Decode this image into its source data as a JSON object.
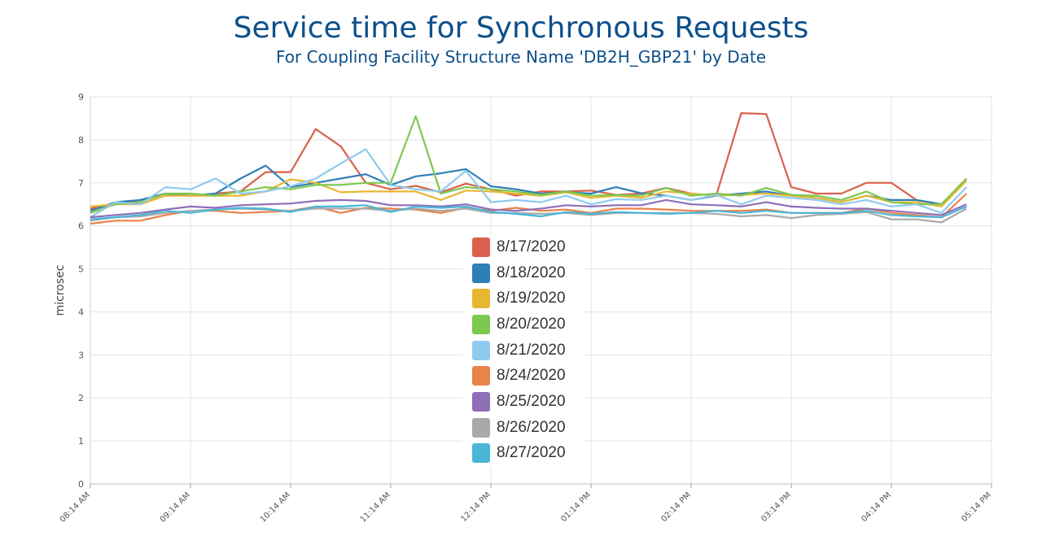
{
  "title": "Service time for Synchronous Requests",
  "subtitle": "For Coupling Facility Structure Name 'DB2H_GBP21' by Date",
  "chart_data": {
    "type": "line",
    "ylabel": "microsec",
    "xlabel": "",
    "ylim": [
      0,
      9
    ],
    "yticks": [
      "0",
      "1",
      "2",
      "3",
      "4",
      "5",
      "6",
      "7",
      "8",
      "9"
    ],
    "x_tick_labels": [
      "08:14 AM",
      "09:14 AM",
      "10:14 AM",
      "11:14 AM",
      "12:14 PM",
      "01:14 PM",
      "02:14 PM",
      "03:14 PM",
      "04:14 PM",
      "05:14 PM"
    ],
    "grid": true,
    "x": [
      "08:14 AM",
      "08:29 AM",
      "08:44 AM",
      "08:59 AM",
      "09:14 AM",
      "09:29 AM",
      "09:44 AM",
      "09:59 AM",
      "10:14 AM",
      "10:29 AM",
      "10:44 AM",
      "10:59 AM",
      "11:14 AM",
      "11:29 AM",
      "11:44 AM",
      "11:59 AM",
      "12:14 PM",
      "12:29 PM",
      "12:44 PM",
      "12:59 PM",
      "01:14 PM",
      "01:29 PM",
      "01:44 PM",
      "01:59 PM",
      "02:14 PM",
      "02:29 PM",
      "02:44 PM",
      "02:59 PM",
      "03:14 PM",
      "03:29 PM",
      "03:44 PM",
      "03:59 PM",
      "04:14 PM",
      "04:29 PM",
      "04:44 PM",
      "04:59 PM"
    ],
    "series": [
      {
        "name": "8/17/2020",
        "color": "#d9614c",
        "values": [
          6.4,
          6.5,
          6.6,
          6.75,
          6.7,
          6.75,
          6.8,
          7.25,
          7.25,
          8.25,
          7.85,
          7.0,
          6.85,
          6.93,
          6.78,
          6.98,
          6.85,
          6.7,
          6.8,
          6.8,
          6.82,
          6.72,
          6.75,
          6.88,
          6.75,
          6.7,
          8.62,
          8.6,
          6.9,
          6.75,
          6.75,
          7.0,
          7.0,
          6.6,
          6.5,
          7.1
        ]
      },
      {
        "name": "8/18/2020",
        "color": "#2f7fb7",
        "values": [
          6.35,
          6.55,
          6.6,
          6.75,
          6.7,
          6.75,
          7.1,
          7.4,
          6.9,
          7.0,
          7.1,
          7.2,
          6.95,
          7.15,
          7.22,
          7.32,
          6.92,
          6.85,
          6.75,
          6.78,
          6.75,
          6.9,
          6.76,
          6.7,
          6.6,
          6.7,
          6.75,
          6.8,
          6.7,
          6.65,
          6.55,
          6.7,
          6.6,
          6.6,
          6.5,
          7.05
        ]
      },
      {
        "name": "8/19/2020",
        "color": "#e8b731",
        "values": [
          6.45,
          6.5,
          6.5,
          6.7,
          6.7,
          6.7,
          6.7,
          6.8,
          7.08,
          7.0,
          6.78,
          6.8,
          6.8,
          6.8,
          6.6,
          6.82,
          6.8,
          6.75,
          6.7,
          6.78,
          6.65,
          6.7,
          6.65,
          6.8,
          6.75,
          6.7,
          6.72,
          6.75,
          6.7,
          6.65,
          6.55,
          6.7,
          6.55,
          6.55,
          6.45,
          7.05
        ]
      },
      {
        "name": "8/20/2020",
        "color": "#7cc950",
        "values": [
          6.3,
          6.5,
          6.55,
          6.75,
          6.75,
          6.7,
          6.8,
          6.9,
          6.85,
          6.95,
          6.95,
          7.0,
          7.0,
          8.55,
          6.75,
          6.9,
          6.85,
          6.8,
          6.72,
          6.8,
          6.7,
          6.72,
          6.7,
          6.88,
          6.7,
          6.75,
          6.7,
          6.88,
          6.72,
          6.7,
          6.6,
          6.8,
          6.55,
          6.5,
          6.5,
          7.1
        ]
      },
      {
        "name": "8/21/2020",
        "color": "#8fcbee",
        "values": [
          6.2,
          6.55,
          6.5,
          6.9,
          6.85,
          7.1,
          6.75,
          6.8,
          6.92,
          7.1,
          7.45,
          7.78,
          6.95,
          6.85,
          6.8,
          7.28,
          6.55,
          6.6,
          6.55,
          6.7,
          6.5,
          6.62,
          6.6,
          6.7,
          6.6,
          6.72,
          6.5,
          6.7,
          6.65,
          6.6,
          6.5,
          6.6,
          6.45,
          6.5,
          6.3,
          6.9
        ]
      },
      {
        "name": "8/24/2020",
        "color": "#e8834a",
        "values": [
          6.05,
          6.12,
          6.12,
          6.25,
          6.35,
          6.35,
          6.3,
          6.32,
          6.35,
          6.45,
          6.3,
          6.42,
          6.4,
          6.38,
          6.3,
          6.42,
          6.35,
          6.42,
          6.35,
          6.38,
          6.3,
          6.4,
          6.4,
          6.38,
          6.35,
          6.35,
          6.35,
          6.38,
          6.3,
          6.3,
          6.3,
          6.4,
          6.3,
          6.25,
          6.2,
          6.75
        ]
      },
      {
        "name": "8/25/2020",
        "color": "#8e6fb8",
        "values": [
          6.2,
          6.25,
          6.3,
          6.38,
          6.45,
          6.42,
          6.48,
          6.5,
          6.52,
          6.58,
          6.6,
          6.58,
          6.48,
          6.48,
          6.45,
          6.5,
          6.38,
          6.35,
          6.4,
          6.48,
          6.45,
          6.48,
          6.48,
          6.6,
          6.5,
          6.48,
          6.45,
          6.55,
          6.45,
          6.42,
          6.4,
          6.4,
          6.35,
          6.3,
          6.25,
          6.5
        ]
      },
      {
        "name": "8/26/2020",
        "color": "#a9a9a9",
        "values": [
          6.12,
          6.2,
          6.22,
          6.3,
          6.35,
          6.38,
          6.4,
          6.38,
          6.35,
          6.4,
          6.4,
          6.4,
          6.35,
          6.4,
          6.35,
          6.4,
          6.3,
          6.3,
          6.28,
          6.3,
          6.25,
          6.3,
          6.3,
          6.3,
          6.3,
          6.28,
          6.22,
          6.25,
          6.18,
          6.25,
          6.28,
          6.32,
          6.15,
          6.15,
          6.08,
          6.4
        ]
      },
      {
        "name": "8/27/2020",
        "color": "#49b6d8",
        "values": [
          6.15,
          6.2,
          6.25,
          6.35,
          6.3,
          6.38,
          6.42,
          6.4,
          6.32,
          6.45,
          6.45,
          6.48,
          6.32,
          6.45,
          6.42,
          6.45,
          6.32,
          6.28,
          6.22,
          6.32,
          6.28,
          6.32,
          6.3,
          6.28,
          6.3,
          6.35,
          6.3,
          6.35,
          6.3,
          6.3,
          6.3,
          6.35,
          6.25,
          6.22,
          6.2,
          6.45
        ]
      }
    ]
  }
}
